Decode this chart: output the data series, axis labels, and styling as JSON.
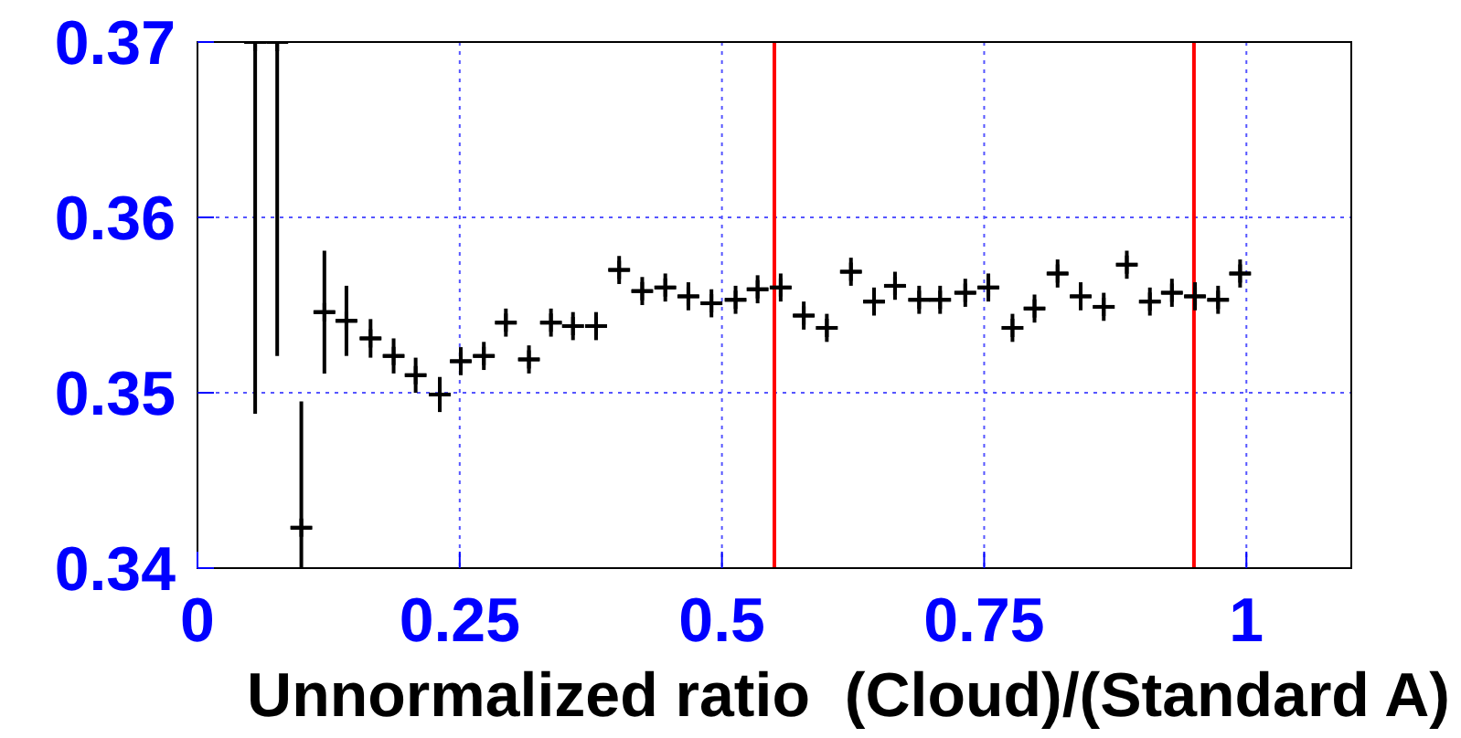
{
  "chart_data": {
    "type": "scatter",
    "xlabel": "Unnormalized ratio  (Cloud)/(Standard A)",
    "x": [
      0.055,
      0.076,
      0.099,
      0.121,
      0.142,
      0.165,
      0.187,
      0.208,
      0.231,
      0.251,
      0.273,
      0.294,
      0.316,
      0.337,
      0.358,
      0.38,
      0.402,
      0.424,
      0.446,
      0.468,
      0.49,
      0.513,
      0.534,
      0.556,
      0.578,
      0.6,
      0.623,
      0.645,
      0.665,
      0.688,
      0.708,
      0.732,
      0.754,
      0.777,
      0.798,
      0.82,
      0.842,
      0.864,
      0.886,
      0.908,
      0.929,
      0.951,
      0.973,
      0.994
    ],
    "values": [
      0.37,
      0.37,
      0.3423,
      0.3546,
      0.3541,
      0.3531,
      0.3521,
      0.351,
      0.3499,
      0.3518,
      0.3521,
      0.354,
      0.3519,
      0.354,
      0.3538,
      0.3538,
      0.357,
      0.3558,
      0.356,
      0.3555,
      0.3551,
      0.3553,
      0.3559,
      0.356,
      0.3544,
      0.3537,
      0.3569,
      0.3552,
      0.3561,
      0.3553,
      0.3553,
      0.3557,
      0.356,
      0.3537,
      0.3548,
      0.3568,
      0.3555,
      0.3549,
      0.3573,
      0.3552,
      0.3557,
      0.3555,
      0.3553,
      0.3568
    ],
    "errors": [
      [
        0.3488,
        0.37
      ],
      [
        0.3521,
        0.37
      ],
      [
        0.34,
        0.3495
      ],
      0.0035,
      0.002,
      0.0011,
      0.001,
      0.001,
      0.001,
      0.0008,
      0.0008,
      0.0008,
      0.0008,
      0.0008,
      0.0008,
      0.0008,
      0.0008,
      0.0008,
      0.0008,
      0.0008,
      0.0008,
      0.0008,
      0.0008,
      0.0008,
      0.0008,
      0.0008,
      0.0008,
      0.0008,
      0.0008,
      0.0008,
      0.0008,
      0.0008,
      0.0008,
      0.0008,
      0.0008,
      0.0008,
      0.0008,
      0.0008,
      0.0008,
      0.0008,
      0.0008,
      0.0008,
      0.0008,
      0.0008
    ],
    "xerrors": [
      null,
      null,
      0.01,
      0.01,
      0.01,
      0.01,
      0.01,
      0.01,
      0.01,
      0.01,
      0.01,
      0.01,
      0.01,
      0.01,
      0.01,
      0.01,
      0.01,
      0.01,
      0.01,
      0.01,
      0.01,
      0.01,
      0.01,
      0.01,
      0.01,
      0.01,
      0.01,
      0.01,
      0.01,
      0.01,
      0.01,
      0.01,
      0.01,
      0.01,
      0.01,
      0.01,
      0.01,
      0.01,
      0.01,
      0.01,
      0.01,
      0.01,
      0.01,
      0.01
    ],
    "color": "#000000",
    "marker": "cross",
    "xlim": [
      0,
      1.1
    ],
    "xticks": [
      0,
      0.25,
      0.5,
      0.75,
      1
    ],
    "ylim": [
      0.34,
      0.37
    ],
    "yticks": [
      0.34,
      0.35,
      0.36,
      0.37
    ],
    "grid": true,
    "ref_lines": [
      {
        "axis": "x",
        "value": 0.55,
        "color": "#ff0000"
      },
      {
        "axis": "x",
        "value": 0.95,
        "color": "#ff0000"
      }
    ]
  }
}
